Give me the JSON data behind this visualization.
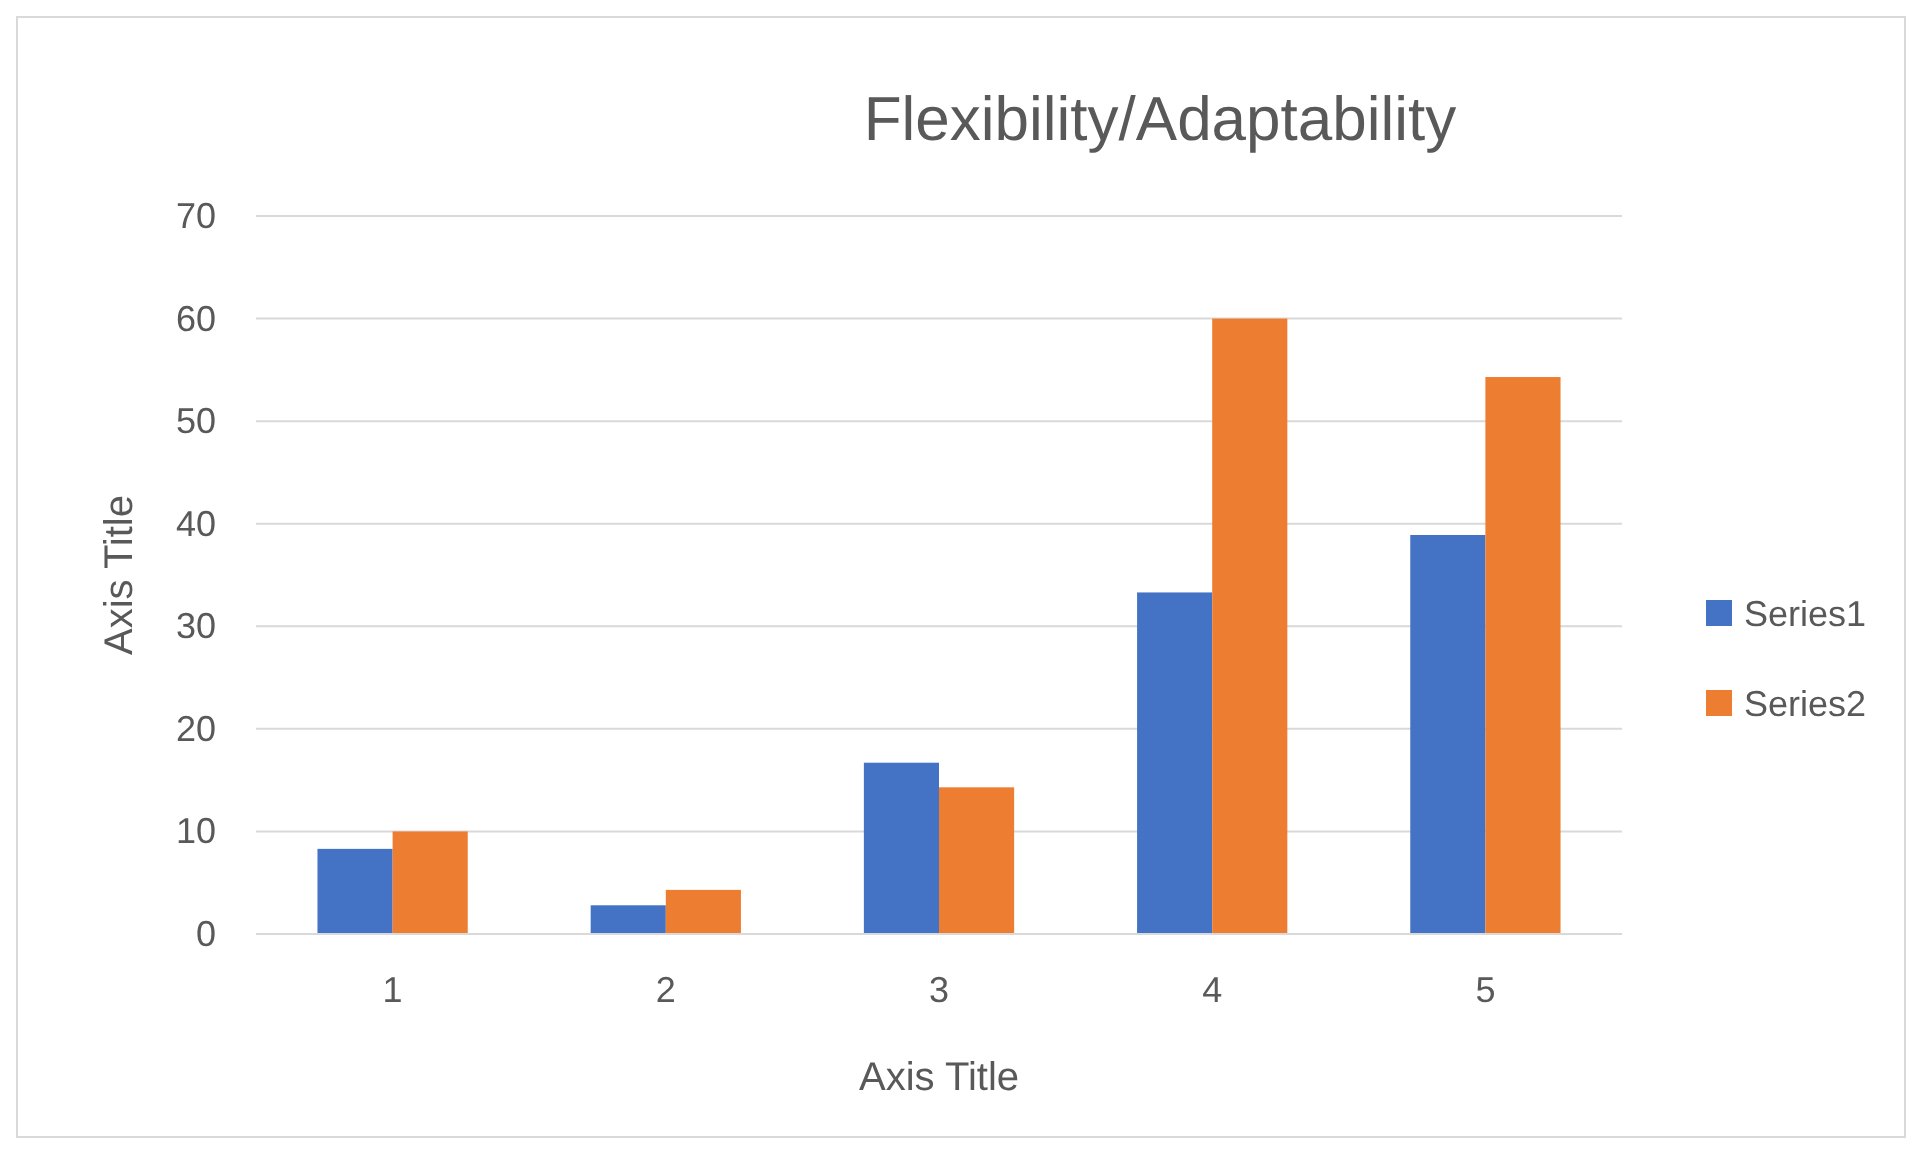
{
  "chart_data": {
    "type": "bar",
    "title": "Flexibility/Adaptability",
    "xlabel": "Axis Title",
    "ylabel": "Axis Title",
    "categories": [
      "1",
      "2",
      "3",
      "4",
      "5"
    ],
    "series": [
      {
        "name": "Series1",
        "color": "#4472c4",
        "values": [
          8.3,
          2.8,
          16.7,
          33.3,
          38.9
        ]
      },
      {
        "name": "Series2",
        "color": "#ed7d31",
        "values": [
          10,
          4.3,
          14.3,
          60,
          54.3
        ]
      }
    ],
    "ylim": [
      0,
      70
    ],
    "yticks": [
      0,
      10,
      20,
      30,
      40,
      50,
      60,
      70
    ],
    "grid": "y",
    "legend": "right"
  }
}
